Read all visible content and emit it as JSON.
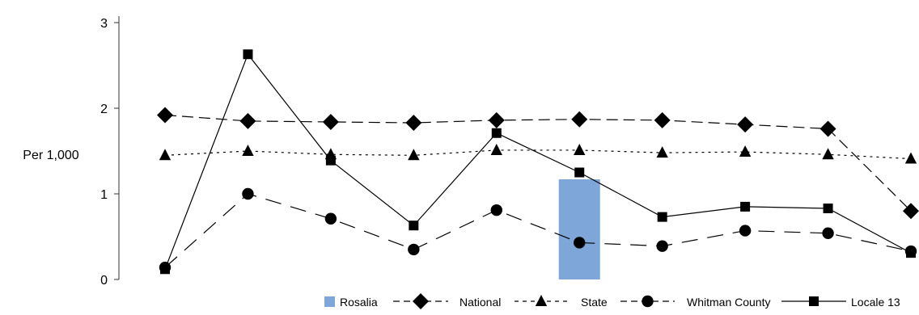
{
  "chart_data": {
    "type": "line",
    "title": "",
    "xlabel": "",
    "ylabel": "Per 1,000",
    "ylim": [
      0,
      3
    ],
    "yticks": [
      "0",
      "1",
      "2",
      "3"
    ],
    "grid": false,
    "legend_position": "bottom-right",
    "categories": [
      "",
      "",
      "",
      "",
      "",
      "",
      "",
      "",
      "",
      ""
    ],
    "bar_series": {
      "name": "Rosalia",
      "color": "#7ea6d8",
      "values": [
        null,
        null,
        null,
        null,
        null,
        1.17,
        null,
        null,
        null,
        null
      ]
    },
    "series": [
      {
        "name": "National",
        "marker": "diamond",
        "dash": "dash",
        "color": "#000000",
        "values": [
          1.92,
          1.85,
          1.84,
          1.83,
          1.86,
          1.87,
          1.86,
          1.81,
          1.76,
          0.8
        ]
      },
      {
        "name": "State",
        "marker": "triangle",
        "dash": "dot",
        "color": "#000000",
        "values": [
          1.45,
          1.5,
          1.46,
          1.45,
          1.51,
          1.51,
          1.48,
          1.49,
          1.46,
          1.41
        ]
      },
      {
        "name": "Whitman County",
        "marker": "circle",
        "dash": "longdash",
        "color": "#000000",
        "values": [
          0.14,
          1.0,
          0.71,
          0.35,
          0.81,
          0.43,
          0.39,
          0.57,
          0.54,
          0.33
        ]
      },
      {
        "name": "Locale 13",
        "marker": "square",
        "dash": "solid",
        "color": "#000000",
        "values": [
          0.12,
          2.63,
          1.39,
          0.63,
          1.71,
          1.25,
          0.73,
          0.85,
          0.83,
          0.31
        ]
      }
    ]
  }
}
